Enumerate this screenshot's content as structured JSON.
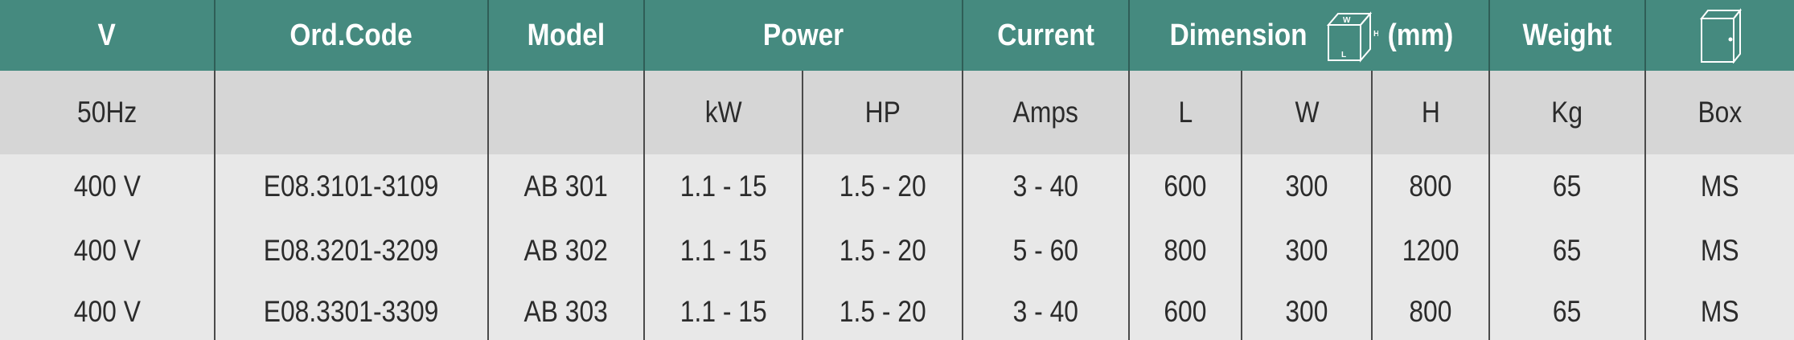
{
  "header": {
    "v": "V",
    "ord_code": "Ord.Code",
    "model": "Model",
    "power": "Power",
    "current": "Current",
    "dimension": "Dimension",
    "dimension_unit": "(mm)",
    "dimension_icon_labels": {
      "w": "W",
      "h": "H",
      "l": "L"
    },
    "weight": "Weight",
    "box_icon": "enclosure-box-icon"
  },
  "subheader": {
    "v": "50Hz",
    "ord_code": "",
    "model": "",
    "kw": "kW",
    "hp": "HP",
    "current": "Amps",
    "l": "L",
    "w": "W",
    "h": "H",
    "weight": "Kg",
    "box": "Box"
  },
  "rows": [
    {
      "v": "400 V",
      "ord_code": "E08.3101-3109",
      "model": "AB 301",
      "kw": "1.1 - 15",
      "hp": "1.5 - 20",
      "amps": "3 -  40",
      "l": "600",
      "w": "300",
      "h": "800",
      "kg": "65",
      "box": "MS"
    },
    {
      "v": "400 V",
      "ord_code": "E08.3201-3209",
      "model": "AB 302",
      "kw": "1.1 - 15",
      "hp": "1.5 - 20",
      "amps": "5 -  60",
      "l": "800",
      "w": "300",
      "h": "1200",
      "kg": "65",
      "box": "MS"
    },
    {
      "v": "400 V",
      "ord_code": "E08.3301-3309",
      "model": "AB 303",
      "kw": "1.1 - 15",
      "hp": "1.5 - 20",
      "amps": "3 - 40",
      "l": "600",
      "w": "300",
      "h": "800",
      "kg": "65",
      "box": "MS"
    }
  ],
  "colors": {
    "header_bg": "#458a7f",
    "subheader_bg": "#d6d6d6",
    "body_bg": "#e8e8e8"
  }
}
